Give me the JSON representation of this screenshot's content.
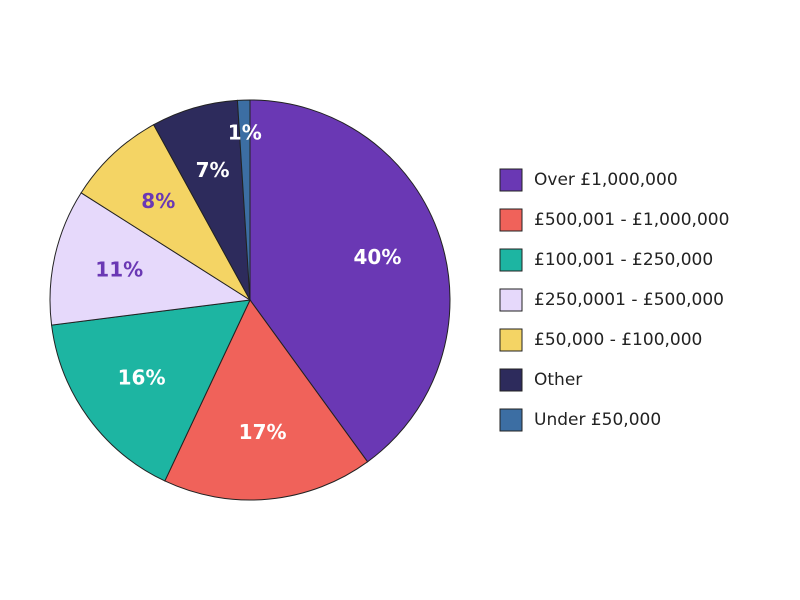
{
  "chart_data": {
    "type": "pie",
    "categories": [
      "Over £1,000,000",
      "£500,001 - £1,000,000",
      "£100,001 - £250,000",
      "£250,0001 - £500,000",
      "£50,000 - £100,000",
      "Other",
      "Under £50,000"
    ],
    "values": [
      40,
      17,
      16,
      11,
      8,
      7,
      1
    ],
    "value_labels": [
      "40%",
      "17%",
      "16%",
      "11%",
      "8%",
      "7%",
      "1%"
    ],
    "colors": [
      "#6a38b4",
      "#f0625a",
      "#1db5a2",
      "#e6d9fb",
      "#f4d464",
      "#2d2b5c",
      "#3c6ea3"
    ],
    "legend": "right"
  }
}
